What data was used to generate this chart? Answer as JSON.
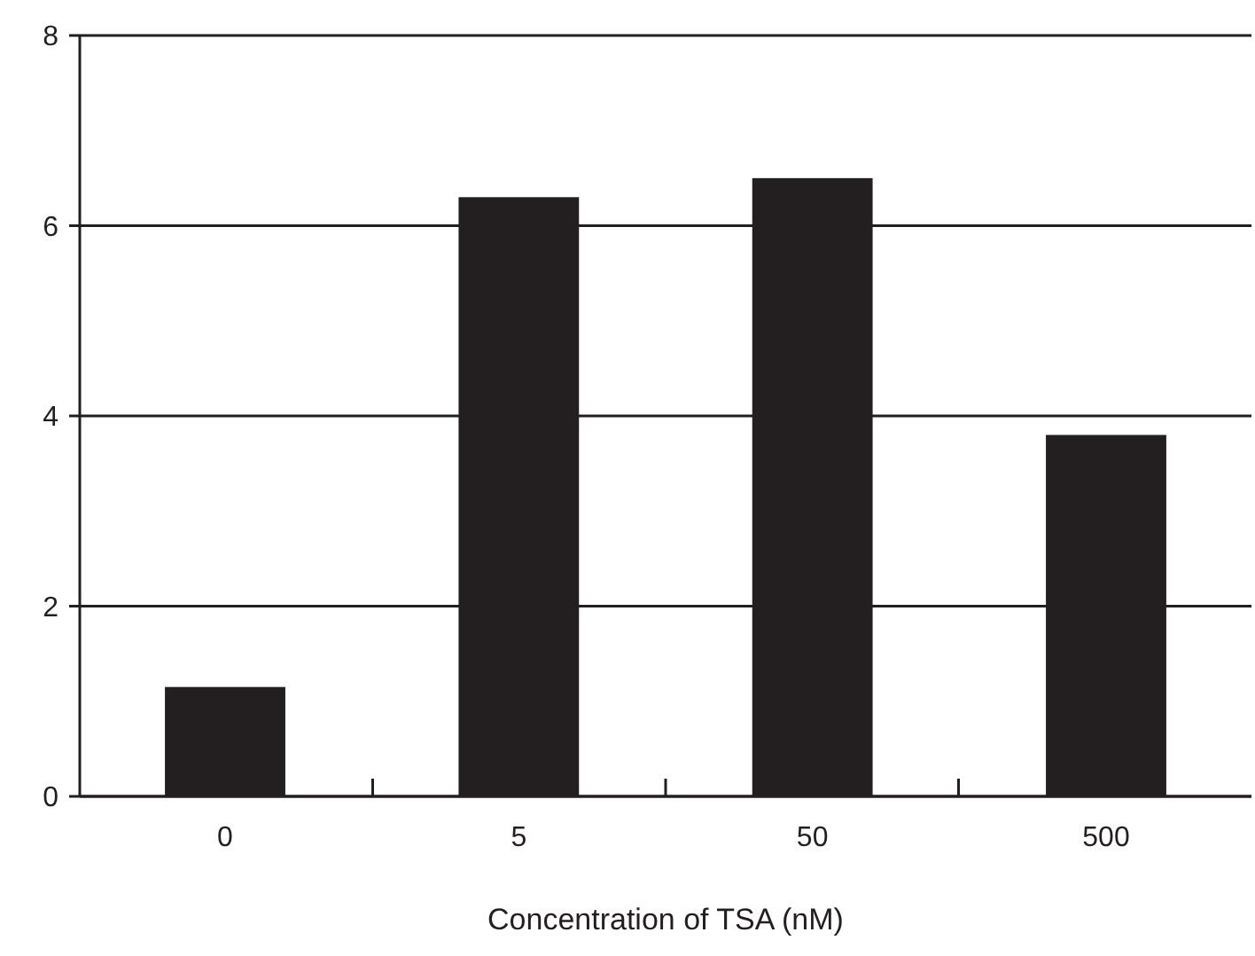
{
  "chart_data": {
    "type": "bar",
    "xlabel": "Concentration of TSA (nM)",
    "categories": [
      "0",
      "5",
      "50",
      "500"
    ],
    "values": [
      1.15,
      6.3,
      6.5,
      3.8
    ],
    "color": "#231f20",
    "ylim": [
      0,
      8
    ],
    "yticks": [
      0,
      2,
      4,
      6,
      8
    ],
    "grid": "y"
  }
}
